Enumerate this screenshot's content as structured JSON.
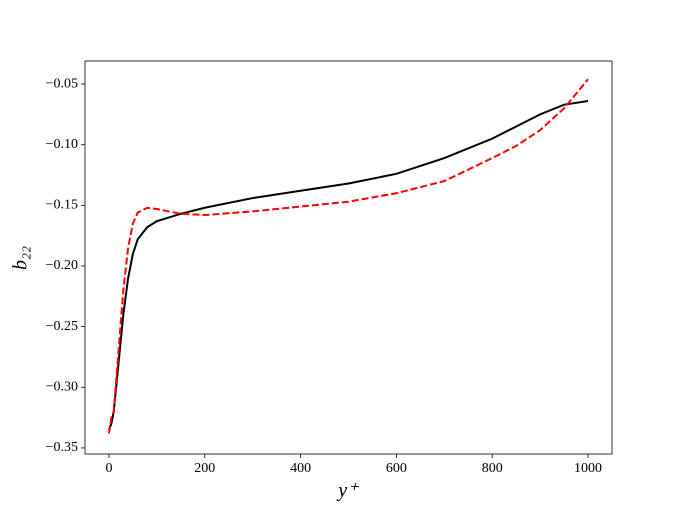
{
  "chart_data": {
    "type": "line",
    "xlabel": "y⁺",
    "ylabel": "b₂₂",
    "x": [
      0,
      5,
      10,
      20,
      30,
      40,
      50,
      60,
      80,
      100,
      150,
      200,
      300,
      400,
      500,
      600,
      700,
      800,
      850,
      900,
      950,
      1000
    ],
    "series": [
      {
        "color": "#000000",
        "dash": "solid",
        "values": [
          -0.335,
          -0.33,
          -0.32,
          -0.28,
          -0.24,
          -0.21,
          -0.19,
          -0.178,
          -0.168,
          -0.163,
          -0.157,
          -0.152,
          -0.144,
          -0.138,
          -0.132,
          -0.124,
          -0.111,
          -0.095,
          -0.085,
          -0.075,
          -0.067,
          -0.064
        ]
      },
      {
        "color": "#ff0000",
        "dash": "dashed",
        "values": [
          -0.338,
          -0.325,
          -0.32,
          -0.27,
          -0.22,
          -0.185,
          -0.165,
          -0.156,
          -0.152,
          -0.153,
          -0.157,
          -0.158,
          -0.155,
          -0.151,
          -0.147,
          -0.14,
          -0.13,
          -0.111,
          -0.101,
          -0.088,
          -0.07,
          -0.046
        ]
      }
    ],
    "xlim": [
      -50,
      1050
    ],
    "ylim": [
      -0.355,
      -0.031
    ],
    "xticks": [
      0,
      200,
      400,
      600,
      800,
      1000
    ],
    "yticks": [
      {
        "value": -0.35,
        "label": "−0.35"
      },
      {
        "value": -0.3,
        "label": "−0.30"
      },
      {
        "value": -0.25,
        "label": "−0.25"
      },
      {
        "value": -0.2,
        "label": "−0.20"
      },
      {
        "value": -0.15,
        "label": "−0.15"
      },
      {
        "value": -0.1,
        "label": "−0.10"
      },
      {
        "value": -0.05,
        "label": "−0.05"
      }
    ],
    "grid": false
  }
}
